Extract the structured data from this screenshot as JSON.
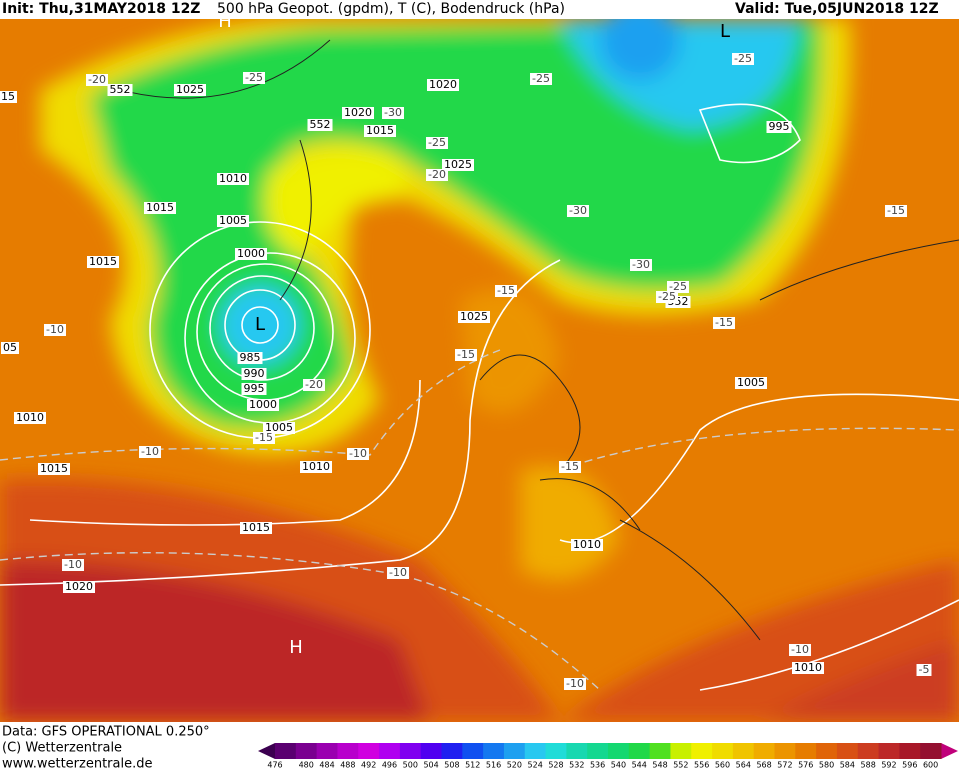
{
  "header": {
    "init": "Init: Thu,31MAY2018 12Z",
    "title": "500 hPa Geopot. (gpdm), T (C), Bodendruck (hPa)",
    "valid": "Valid: Tue,05JUN2018 12Z"
  },
  "map_labels": [
    {
      "text": "1025",
      "kind": "pressure"
    },
    {
      "text": "1020",
      "kind": "pressure"
    },
    {
      "text": "1020",
      "kind": "pressure"
    },
    {
      "text": "1015",
      "kind": "pressure"
    },
    {
      "text": "1010",
      "kind": "pressure"
    },
    {
      "text": "1015",
      "kind": "pressure"
    },
    {
      "text": "1005",
      "kind": "pressure"
    },
    {
      "text": "1000",
      "kind": "pressure"
    },
    {
      "text": "1015",
      "kind": "pressure"
    },
    {
      "text": "1025",
      "kind": "pressure"
    },
    {
      "text": "1025",
      "kind": "pressure"
    },
    {
      "text": "995",
      "kind": "pressure"
    },
    {
      "text": "985",
      "kind": "pressure"
    },
    {
      "text": "990",
      "kind": "pressure"
    },
    {
      "text": "995",
      "kind": "pressure"
    },
    {
      "text": "1000",
      "kind": "pressure"
    },
    {
      "text": "1005",
      "kind": "pressure"
    },
    {
      "text": "1010",
      "kind": "pressure"
    },
    {
      "text": "1015",
      "kind": "pressure"
    },
    {
      "text": "1010",
      "kind": "pressure"
    },
    {
      "text": "1005",
      "kind": "pressure"
    },
    {
      "text": "1015",
      "kind": "pressure"
    },
    {
      "text": "1020",
      "kind": "pressure"
    },
    {
      "text": "1010",
      "kind": "pressure"
    },
    {
      "text": "1010",
      "kind": "pressure"
    },
    {
      "text": "552",
      "kind": "pressure"
    },
    {
      "text": "552",
      "kind": "pressure"
    },
    {
      "text": "552",
      "kind": "pressure"
    },
    {
      "text": "-20",
      "kind": "temperature"
    },
    {
      "text": "-25",
      "kind": "temperature"
    },
    {
      "text": "-25",
      "kind": "temperature"
    },
    {
      "text": "-25",
      "kind": "temperature"
    },
    {
      "text": "-30",
      "kind": "temperature"
    },
    {
      "text": "-25",
      "kind": "temperature"
    },
    {
      "text": "-20",
      "kind": "temperature"
    },
    {
      "text": "-30",
      "kind": "temperature"
    },
    {
      "text": "-15",
      "kind": "temperature"
    },
    {
      "text": "-30",
      "kind": "temperature"
    },
    {
      "text": "-25",
      "kind": "temperature"
    },
    {
      "text": "-25",
      "kind": "temperature"
    },
    {
      "text": "-15",
      "kind": "temperature"
    },
    {
      "text": "-15",
      "kind": "temperature"
    },
    {
      "text": "-15",
      "kind": "temperature"
    },
    {
      "text": "-10",
      "kind": "temperature"
    },
    {
      "text": "-20",
      "kind": "temperature"
    },
    {
      "text": "-15",
      "kind": "temperature"
    },
    {
      "text": "-10",
      "kind": "temperature"
    },
    {
      "text": "-10",
      "kind": "temperature"
    },
    {
      "text": "-15",
      "kind": "temperature"
    },
    {
      "text": "-10",
      "kind": "temperature"
    },
    {
      "text": "-10",
      "kind": "temperature"
    },
    {
      "text": "-10",
      "kind": "temperature"
    },
    {
      "text": "-10",
      "kind": "temperature"
    },
    {
      "text": "-5",
      "kind": "temperature"
    },
    {
      "text": "15",
      "kind": "pressure"
    },
    {
      "text": "05",
      "kind": "pressure"
    },
    {
      "text": "L",
      "kind": "low"
    },
    {
      "text": "L",
      "kind": "low"
    },
    {
      "text": "H",
      "kind": "high"
    },
    {
      "text": "H",
      "kind": "high"
    }
  ],
  "footer": {
    "data": "Data: GFS OPERATIONAL 0.250°",
    "copyright": "(C) Wetterzentrale",
    "url": "www.wetterzentrale.de"
  },
  "legend": {
    "values": [
      476,
      480,
      484,
      488,
      492,
      496,
      500,
      504,
      508,
      512,
      516,
      520,
      524,
      528,
      532,
      536,
      540,
      544,
      548,
      552,
      556,
      560,
      564,
      568,
      572,
      576,
      580,
      584,
      588,
      592,
      596,
      600
    ],
    "colors": [
      "#5a0070",
      "#7a0090",
      "#9a00b0",
      "#b800cc",
      "#d000e0",
      "#b000f0",
      "#8000f0",
      "#5000f0",
      "#2020f0",
      "#1050f0",
      "#1478f0",
      "#1ea0f0",
      "#28c8f0",
      "#20dcd8",
      "#18d8b0",
      "#14d890",
      "#14d870",
      "#20d848",
      "#50e020",
      "#c8f000",
      "#f0f000",
      "#f0dc00",
      "#f0c400",
      "#f0ac00",
      "#ec9400",
      "#e67c00",
      "#e06408",
      "#d85014",
      "#cc3c20",
      "#bc2828",
      "#a81828",
      "#941030"
    ]
  }
}
